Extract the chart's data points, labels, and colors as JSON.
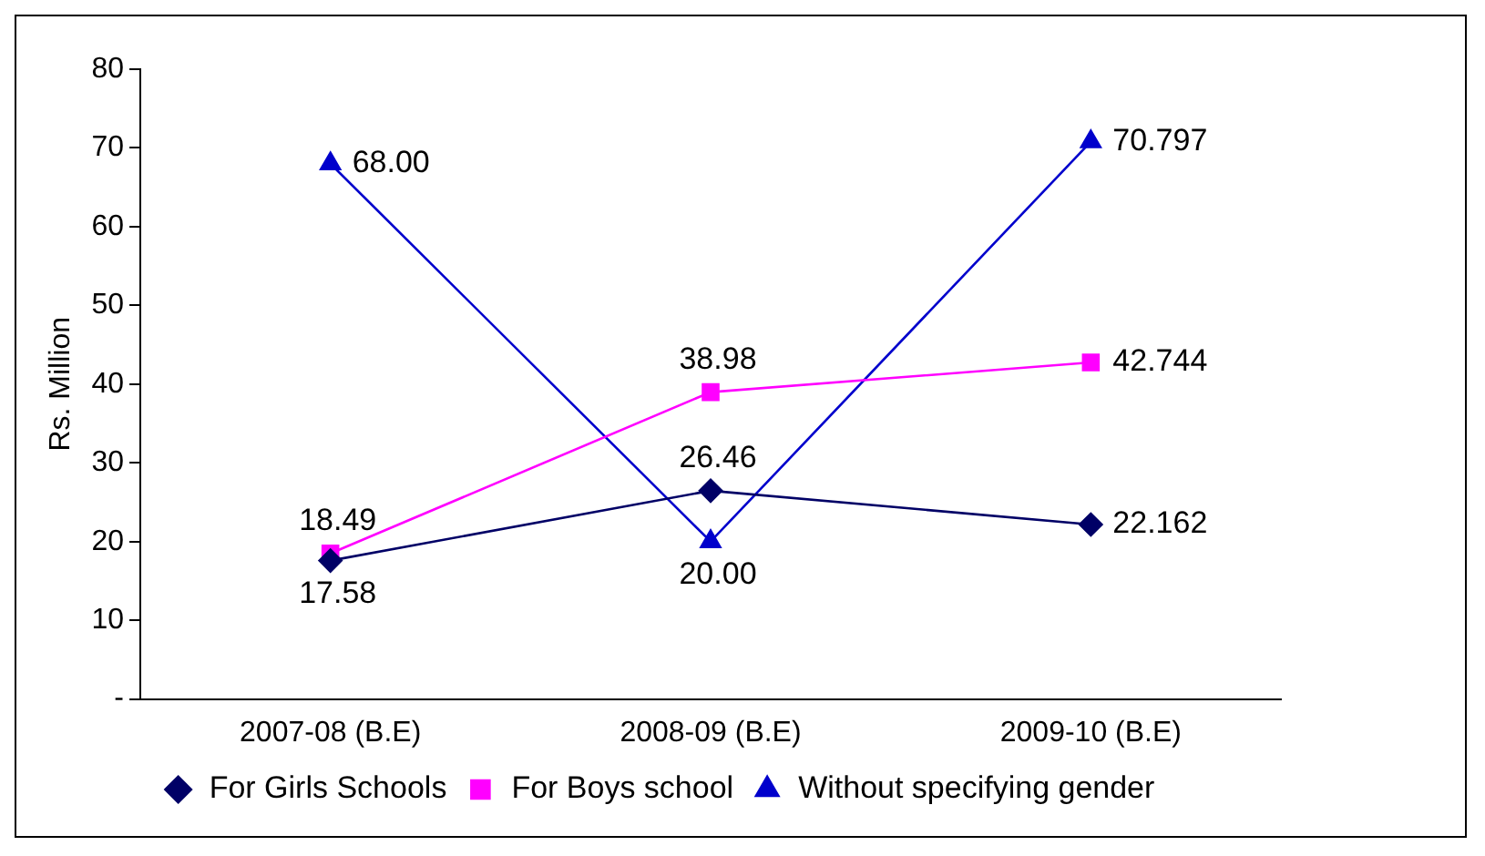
{
  "chart_data": {
    "type": "line",
    "ylabel": "Rs. Million",
    "categories": [
      "2007-08 (B.E)",
      "2008-09 (B.E)",
      "2009-10 (B.E)"
    ],
    "series": [
      {
        "name": "For Girls Schools",
        "color": "#000066",
        "marker": "diamond",
        "values": [
          17.58,
          26.46,
          22.162
        ],
        "value_labels": [
          "17.58",
          "26.46",
          "22.162"
        ]
      },
      {
        "name": "For Boys school",
        "color": "#ff00ff",
        "marker": "square",
        "values": [
          18.49,
          38.98,
          42.744
        ],
        "value_labels": [
          "18.49",
          "38.98",
          "42.744"
        ]
      },
      {
        "name": "Without specifying gender",
        "color": "#0000cc",
        "marker": "triangle",
        "values": [
          68.0,
          20.0,
          70.797
        ],
        "value_labels": [
          "68.00",
          "20.00",
          "70.797"
        ]
      }
    ],
    "ylim": [
      0,
      80
    ],
    "yticks": [
      {
        "value": 0,
        "label": "-"
      },
      10,
      20,
      30,
      40,
      50,
      60,
      70,
      80
    ],
    "grid": false,
    "legend": "bottom",
    "line_style": "solid"
  }
}
